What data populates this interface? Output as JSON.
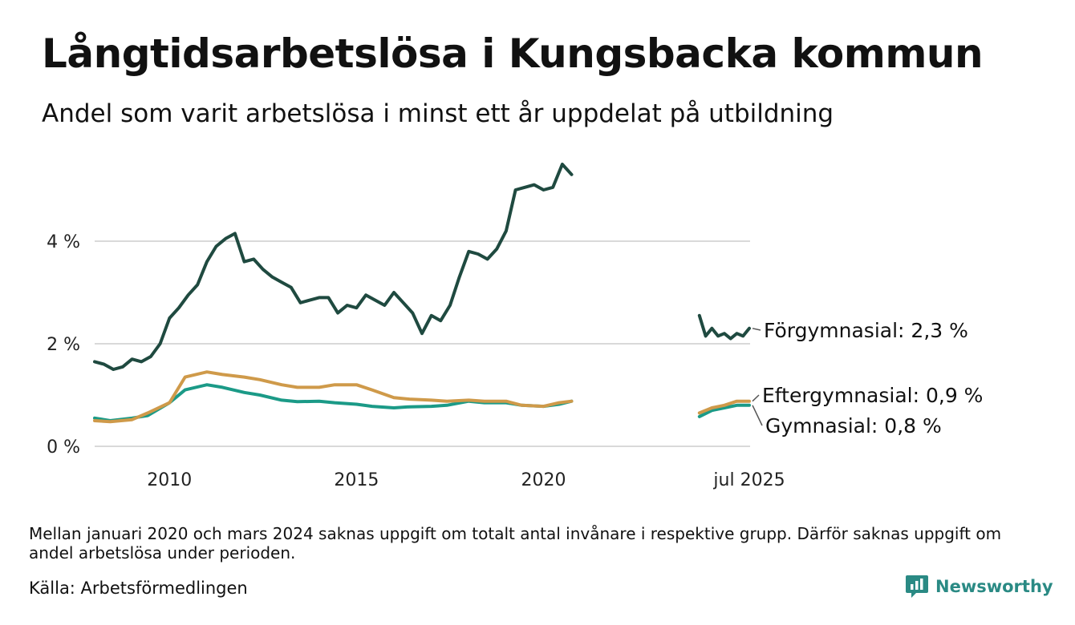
{
  "header": {
    "title": "Långtidsarbetslösa i Kungsbacka kommun",
    "subtitle": "Andel som varit arbetslösa i minst ett år uppdelat på utbildning"
  },
  "footer": {
    "note": "Mellan januari 2020 och mars 2024 saknas uppgift om totalt antal invånare i respektive grupp. Därför saknas uppgift om andel arbetslösa under perioden.",
    "source": "Källa: Arbetsförmedlingen",
    "brand": "Newsworthy",
    "brand_icon": "newsworthy-logo-icon"
  },
  "colors": {
    "forgymnasial": "#1f4a40",
    "gymnasial": "#1b9a87",
    "eftergymnasial": "#cf9a4a",
    "grid": "#d9d9d9",
    "brand": "#2a8a84"
  },
  "chart_data": {
    "type": "line",
    "title": "Långtidsarbetslösa i Kungsbacka kommun",
    "subtitle": "Andel som varit arbetslösa i minst ett år uppdelat på utbildning",
    "xlabel": "",
    "ylabel": "",
    "unit": "%",
    "ylim": [
      0,
      5.8
    ],
    "yticks": [
      0,
      2,
      4
    ],
    "ytick_labels": [
      "0 %",
      "2 %",
      "4 %"
    ],
    "xlim": [
      "2008-01",
      "2025-07"
    ],
    "xticks": [
      "2010-01",
      "2015-01",
      "2020-01",
      "2025-07"
    ],
    "xtick_labels": [
      "2010",
      "2015",
      "2020",
      "jul 2025"
    ],
    "grid": true,
    "legend": "end-of-line labels",
    "end_labels": [
      "Förgymnasial: 2,3 %",
      "Eftergymnasial: 0,9 %",
      "Gymnasial: 0,8 %"
    ],
    "gap": [
      "2020-01",
      "2024-03"
    ],
    "series": [
      {
        "name": "Förgymnasial",
        "segments": [
          [
            [
              "2008-01",
              1.65
            ],
            [
              "2008-04",
              1.6
            ],
            [
              "2008-07",
              1.5
            ],
            [
              "2008-10",
              1.55
            ],
            [
              "2009-01",
              1.7
            ],
            [
              "2009-04",
              1.65
            ],
            [
              "2009-07",
              1.75
            ],
            [
              "2009-10",
              2.0
            ],
            [
              "2010-01",
              2.5
            ],
            [
              "2010-04",
              2.7
            ],
            [
              "2010-07",
              2.95
            ],
            [
              "2010-10",
              3.15
            ],
            [
              "2011-01",
              3.6
            ],
            [
              "2011-04",
              3.9
            ],
            [
              "2011-07",
              4.05
            ],
            [
              "2011-10",
              4.15
            ],
            [
              "2012-01",
              3.6
            ],
            [
              "2012-04",
              3.65
            ],
            [
              "2012-07",
              3.45
            ],
            [
              "2012-10",
              3.3
            ],
            [
              "2013-01",
              3.2
            ],
            [
              "2013-04",
              3.1
            ],
            [
              "2013-07",
              2.8
            ],
            [
              "2013-10",
              2.85
            ],
            [
              "2014-01",
              2.9
            ],
            [
              "2014-04",
              2.9
            ],
            [
              "2014-07",
              2.6
            ],
            [
              "2014-10",
              2.75
            ],
            [
              "2015-01",
              2.7
            ],
            [
              "2015-04",
              2.95
            ],
            [
              "2015-07",
              2.85
            ],
            [
              "2015-10",
              2.75
            ],
            [
              "2016-01",
              3.0
            ],
            [
              "2016-04",
              2.8
            ],
            [
              "2016-07",
              2.6
            ],
            [
              "2016-10",
              2.2
            ],
            [
              "2017-01",
              2.55
            ],
            [
              "2017-04",
              2.45
            ],
            [
              "2017-07",
              2.75
            ],
            [
              "2017-10",
              3.3
            ],
            [
              "2018-01",
              3.8
            ],
            [
              "2018-04",
              3.75
            ],
            [
              "2018-07",
              3.65
            ],
            [
              "2018-10",
              3.85
            ],
            [
              "2019-01",
              4.2
            ],
            [
              "2019-04",
              5.0
            ],
            [
              "2019-07",
              5.05
            ],
            [
              "2019-10",
              5.1
            ],
            [
              "2020-01",
              5.0
            ],
            [
              "2020-04",
              5.05
            ],
            [
              "2020-07",
              5.5
            ],
            [
              "2020-10",
              5.3
            ]
          ],
          [
            [
              "2024-03",
              2.55
            ],
            [
              "2024-05",
              2.15
            ],
            [
              "2024-07",
              2.3
            ],
            [
              "2024-09",
              2.15
            ],
            [
              "2024-11",
              2.2
            ],
            [
              "2025-01",
              2.1
            ],
            [
              "2025-03",
              2.2
            ],
            [
              "2025-05",
              2.15
            ],
            [
              "2025-07",
              2.3
            ]
          ]
        ]
      },
      {
        "name": "Gymnasial",
        "segments": [
          [
            [
              "2008-01",
              0.55
            ],
            [
              "2008-06",
              0.5
            ],
            [
              "2009-01",
              0.55
            ],
            [
              "2009-06",
              0.6
            ],
            [
              "2010-01",
              0.85
            ],
            [
              "2010-06",
              1.1
            ],
            [
              "2011-01",
              1.2
            ],
            [
              "2011-06",
              1.15
            ],
            [
              "2012-01",
              1.05
            ],
            [
              "2012-06",
              1.0
            ],
            [
              "2013-01",
              0.9
            ],
            [
              "2013-06",
              0.87
            ],
            [
              "2014-01",
              0.88
            ],
            [
              "2014-06",
              0.85
            ],
            [
              "2015-01",
              0.82
            ],
            [
              "2015-06",
              0.78
            ],
            [
              "2016-01",
              0.75
            ],
            [
              "2016-06",
              0.77
            ],
            [
              "2017-01",
              0.78
            ],
            [
              "2017-06",
              0.8
            ],
            [
              "2018-01",
              0.88
            ],
            [
              "2018-06",
              0.85
            ],
            [
              "2019-01",
              0.85
            ],
            [
              "2019-06",
              0.8
            ],
            [
              "2020-01",
              0.78
            ],
            [
              "2020-06",
              0.82
            ],
            [
              "2020-10",
              0.88
            ]
          ],
          [
            [
              "2024-03",
              0.58
            ],
            [
              "2024-07",
              0.7
            ],
            [
              "2024-11",
              0.75
            ],
            [
              "2025-03",
              0.8
            ],
            [
              "2025-07",
              0.8
            ]
          ]
        ]
      },
      {
        "name": "Eftergymnasial",
        "segments": [
          [
            [
              "2008-01",
              0.5
            ],
            [
              "2008-06",
              0.48
            ],
            [
              "2009-01",
              0.52
            ],
            [
              "2009-06",
              0.65
            ],
            [
              "2010-01",
              0.85
            ],
            [
              "2010-06",
              1.35
            ],
            [
              "2011-01",
              1.45
            ],
            [
              "2011-06",
              1.4
            ],
            [
              "2012-01",
              1.35
            ],
            [
              "2012-06",
              1.3
            ],
            [
              "2013-01",
              1.2
            ],
            [
              "2013-06",
              1.15
            ],
            [
              "2014-01",
              1.15
            ],
            [
              "2014-06",
              1.2
            ],
            [
              "2015-01",
              1.2
            ],
            [
              "2015-06",
              1.1
            ],
            [
              "2016-01",
              0.95
            ],
            [
              "2016-06",
              0.92
            ],
            [
              "2017-01",
              0.9
            ],
            [
              "2017-06",
              0.88
            ],
            [
              "2018-01",
              0.9
            ],
            [
              "2018-06",
              0.88
            ],
            [
              "2019-01",
              0.88
            ],
            [
              "2019-06",
              0.8
            ],
            [
              "2020-01",
              0.78
            ],
            [
              "2020-06",
              0.85
            ],
            [
              "2020-10",
              0.88
            ]
          ],
          [
            [
              "2024-03",
              0.65
            ],
            [
              "2024-07",
              0.75
            ],
            [
              "2024-11",
              0.8
            ],
            [
              "2025-03",
              0.88
            ],
            [
              "2025-07",
              0.88
            ]
          ]
        ]
      }
    ]
  }
}
